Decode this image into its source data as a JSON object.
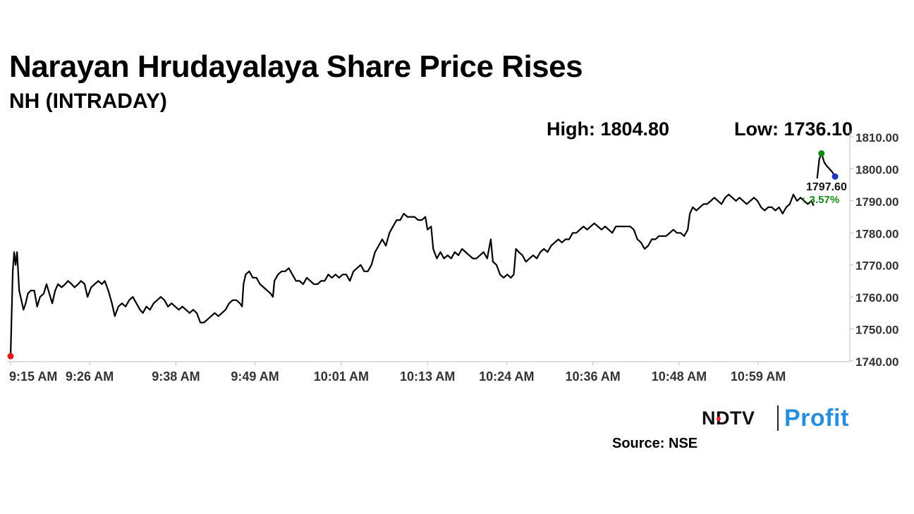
{
  "chart_data": {
    "type": "line",
    "title": "Narayan Hrudayalaya Share Price Rises",
    "subtitle": "NH (INTRADAY)",
    "high_label": "High: 1804.80",
    "low_label": "Low: 1736.10",
    "last_price_label": "1797.60",
    "change_label": "↑ 3.57%",
    "x_tick_labels": [
      "9:15 AM",
      "9:26 AM",
      "9:38 AM",
      "9:49 AM",
      "10:01 AM",
      "10:13 AM",
      "10:24 AM",
      "10:36 AM",
      "10:48 AM",
      "10:59 AM"
    ],
    "x_tick_minutes": [
      0,
      11,
      23,
      34,
      46,
      58,
      69,
      81,
      93,
      104
    ],
    "y_ticks": [
      1740,
      1750,
      1760,
      1770,
      1780,
      1790,
      1800,
      1810
    ],
    "y_tick_labels": [
      "1740.00",
      "1750.00",
      "1760.00",
      "1770.00",
      "1780.00",
      "1790.00",
      "1800.00",
      "1810.00"
    ],
    "ylim": [
      1740,
      1810
    ],
    "xlim_minutes": [
      0,
      114
    ],
    "grid": false,
    "series": [
      {
        "values": [
          [
            0,
            1741.5
          ],
          [
            0.3,
            1768
          ],
          [
            0.5,
            1774
          ],
          [
            0.7,
            1770
          ],
          [
            0.9,
            1774
          ],
          [
            1.2,
            1762
          ],
          [
            1.5,
            1759
          ],
          [
            1.8,
            1756
          ],
          [
            2.1,
            1758
          ],
          [
            2.4,
            1761
          ],
          [
            2.8,
            1762
          ],
          [
            3.3,
            1762
          ],
          [
            3.7,
            1757
          ],
          [
            4.1,
            1760
          ],
          [
            4.6,
            1761
          ],
          [
            5.0,
            1764
          ],
          [
            5.4,
            1761
          ],
          [
            5.8,
            1758
          ],
          [
            6.2,
            1762
          ],
          [
            6.6,
            1764
          ],
          [
            7.1,
            1763
          ],
          [
            7.6,
            1764
          ],
          [
            8.0,
            1765
          ],
          [
            8.5,
            1764
          ],
          [
            8.9,
            1763
          ],
          [
            9.4,
            1764
          ],
          [
            9.8,
            1765
          ],
          [
            10.3,
            1764
          ],
          [
            10.7,
            1760
          ],
          [
            11.2,
            1763
          ],
          [
            11.7,
            1764
          ],
          [
            12.2,
            1765
          ],
          [
            12.7,
            1764
          ],
          [
            13.1,
            1765
          ],
          [
            13.6,
            1762
          ],
          [
            14.1,
            1758
          ],
          [
            14.5,
            1754
          ],
          [
            15.0,
            1757
          ],
          [
            15.5,
            1758
          ],
          [
            16.0,
            1757
          ],
          [
            16.5,
            1759
          ],
          [
            17.0,
            1760
          ],
          [
            17.5,
            1758
          ],
          [
            18.0,
            1756
          ],
          [
            18.4,
            1755
          ],
          [
            18.9,
            1757
          ],
          [
            19.4,
            1756
          ],
          [
            19.9,
            1758
          ],
          [
            20.4,
            1759
          ],
          [
            20.9,
            1760
          ],
          [
            21.4,
            1759
          ],
          [
            21.9,
            1757
          ],
          [
            22.4,
            1758
          ],
          [
            22.9,
            1757
          ],
          [
            23.4,
            1756
          ],
          [
            23.9,
            1757
          ],
          [
            24.4,
            1756
          ],
          [
            24.9,
            1755
          ],
          [
            25.4,
            1756
          ],
          [
            25.9,
            1755
          ],
          [
            26.4,
            1752
          ],
          [
            26.9,
            1752
          ],
          [
            27.4,
            1753
          ],
          [
            27.9,
            1754
          ],
          [
            28.4,
            1755
          ],
          [
            28.9,
            1754
          ],
          [
            29.4,
            1755
          ],
          [
            29.9,
            1756
          ],
          [
            30.4,
            1758
          ],
          [
            30.9,
            1759
          ],
          [
            31.4,
            1759
          ],
          [
            31.9,
            1758
          ],
          [
            32.2,
            1757
          ],
          [
            32.4,
            1764
          ],
          [
            32.7,
            1767
          ],
          [
            33.2,
            1768
          ],
          [
            33.7,
            1766
          ],
          [
            34.2,
            1766
          ],
          [
            34.7,
            1764
          ],
          [
            35.2,
            1763
          ],
          [
            35.7,
            1762
          ],
          [
            36.2,
            1761
          ],
          [
            36.5,
            1760
          ],
          [
            36.7,
            1765
          ],
          [
            37.2,
            1767
          ],
          [
            37.7,
            1768
          ],
          [
            38.2,
            1768
          ],
          [
            38.7,
            1769
          ],
          [
            39.2,
            1767
          ],
          [
            39.7,
            1765
          ],
          [
            40.2,
            1765
          ],
          [
            40.7,
            1764
          ],
          [
            41.2,
            1766
          ],
          [
            41.7,
            1765
          ],
          [
            42.2,
            1764
          ],
          [
            42.7,
            1764
          ],
          [
            43.2,
            1765
          ],
          [
            43.7,
            1765
          ],
          [
            44.2,
            1767
          ],
          [
            44.7,
            1766
          ],
          [
            45.2,
            1767
          ],
          [
            45.7,
            1766
          ],
          [
            46.2,
            1767
          ],
          [
            46.7,
            1767
          ],
          [
            47.2,
            1765
          ],
          [
            47.7,
            1768
          ],
          [
            48.2,
            1769
          ],
          [
            48.7,
            1770
          ],
          [
            49.2,
            1768
          ],
          [
            49.7,
            1768
          ],
          [
            50.2,
            1770
          ],
          [
            50.7,
            1774
          ],
          [
            51.2,
            1776
          ],
          [
            51.7,
            1778
          ],
          [
            52.2,
            1776
          ],
          [
            52.7,
            1780
          ],
          [
            53.2,
            1782
          ],
          [
            53.7,
            1784
          ],
          [
            54.2,
            1784
          ],
          [
            54.7,
            1786
          ],
          [
            55.2,
            1785
          ],
          [
            55.7,
            1785
          ],
          [
            56.2,
            1785
          ],
          [
            56.7,
            1784
          ],
          [
            57.2,
            1784
          ],
          [
            57.7,
            1785
          ],
          [
            58.0,
            1781
          ],
          [
            58.5,
            1782
          ],
          [
            58.8,
            1775
          ],
          [
            59.3,
            1772
          ],
          [
            59.8,
            1774
          ],
          [
            60.3,
            1772
          ],
          [
            60.8,
            1773
          ],
          [
            61.3,
            1772
          ],
          [
            61.8,
            1774
          ],
          [
            62.3,
            1773
          ],
          [
            62.8,
            1775
          ],
          [
            63.3,
            1774
          ],
          [
            63.8,
            1773
          ],
          [
            64.3,
            1772
          ],
          [
            64.8,
            1772
          ],
          [
            65.3,
            1773
          ],
          [
            65.8,
            1774
          ],
          [
            66.3,
            1772
          ],
          [
            66.8,
            1778
          ],
          [
            67.1,
            1771
          ],
          [
            67.6,
            1770
          ],
          [
            68.1,
            1767
          ],
          [
            68.6,
            1766
          ],
          [
            69.1,
            1767
          ],
          [
            69.6,
            1766
          ],
          [
            70.0,
            1767
          ],
          [
            70.3,
            1775
          ],
          [
            70.7,
            1774
          ],
          [
            71.2,
            1773
          ],
          [
            71.7,
            1771
          ],
          [
            72.2,
            1772
          ],
          [
            72.7,
            1773
          ],
          [
            73.2,
            1772
          ],
          [
            73.7,
            1774
          ],
          [
            74.2,
            1775
          ],
          [
            74.7,
            1774
          ],
          [
            75.2,
            1776
          ],
          [
            75.7,
            1777
          ],
          [
            76.2,
            1778
          ],
          [
            76.7,
            1777
          ],
          [
            77.2,
            1778
          ],
          [
            77.7,
            1778
          ],
          [
            78.2,
            1780
          ],
          [
            78.7,
            1780
          ],
          [
            79.2,
            1781
          ],
          [
            79.7,
            1782
          ],
          [
            80.2,
            1781
          ],
          [
            80.7,
            1782
          ],
          [
            81.2,
            1783
          ],
          [
            81.7,
            1782
          ],
          [
            82.2,
            1781
          ],
          [
            82.7,
            1782
          ],
          [
            83.2,
            1781
          ],
          [
            83.7,
            1780
          ],
          [
            84.2,
            1782
          ],
          [
            84.7,
            1782
          ],
          [
            85.2,
            1782
          ],
          [
            85.7,
            1782
          ],
          [
            86.2,
            1782
          ],
          [
            86.7,
            1781
          ],
          [
            87.2,
            1778
          ],
          [
            87.7,
            1777
          ],
          [
            88.2,
            1775
          ],
          [
            88.7,
            1776
          ],
          [
            89.2,
            1778
          ],
          [
            89.7,
            1778
          ],
          [
            90.2,
            1779
          ],
          [
            90.7,
            1779
          ],
          [
            91.2,
            1779
          ],
          [
            91.7,
            1780
          ],
          [
            92.2,
            1781
          ],
          [
            92.7,
            1780
          ],
          [
            93.2,
            1780
          ],
          [
            93.7,
            1779
          ],
          [
            94.2,
            1781
          ],
          [
            94.5,
            1786
          ],
          [
            94.9,
            1788
          ],
          [
            95.4,
            1787
          ],
          [
            95.9,
            1788
          ],
          [
            96.4,
            1789
          ],
          [
            96.9,
            1789
          ],
          [
            97.4,
            1790
          ],
          [
            97.9,
            1791
          ],
          [
            98.4,
            1790
          ],
          [
            98.9,
            1789
          ],
          [
            99.4,
            1791
          ],
          [
            99.9,
            1792
          ],
          [
            100.4,
            1791
          ],
          [
            100.9,
            1790
          ],
          [
            101.4,
            1791
          ],
          [
            101.9,
            1790
          ],
          [
            102.4,
            1789
          ],
          [
            102.9,
            1790
          ],
          [
            103.4,
            1791
          ],
          [
            103.9,
            1790
          ],
          [
            104.4,
            1788
          ],
          [
            104.9,
            1787
          ],
          [
            105.4,
            1788
          ],
          [
            105.9,
            1788
          ],
          [
            106.4,
            1787
          ],
          [
            106.9,
            1788
          ],
          [
            107.4,
            1786
          ],
          [
            107.9,
            1788
          ],
          [
            108.4,
            1789
          ],
          [
            108.9,
            1792
          ],
          [
            109.4,
            1790
          ],
          [
            109.9,
            1791
          ],
          [
            110.4,
            1790
          ],
          [
            110.9,
            1789
          ],
          [
            111.4,
            1790
          ],
          [
            111.7,
            1788.5
          ]
        ]
      },
      {
        "values": [
          [
            112.2,
            1797
          ],
          [
            112.5,
            1803
          ],
          [
            112.8,
            1804.8
          ],
          [
            113.2,
            1802
          ],
          [
            113.5,
            1801
          ],
          [
            113.9,
            1800
          ],
          [
            114.3,
            1799
          ],
          [
            114.7,
            1797.6
          ]
        ]
      }
    ],
    "markers": [
      {
        "role": "low",
        "x": 0,
        "y": 1741.5,
        "color": "#e01a1a"
      },
      {
        "role": "high",
        "x": 112.8,
        "y": 1804.8,
        "color": "#118a11"
      },
      {
        "role": "last",
        "x": 114.7,
        "y": 1797.6,
        "color": "#1e32c8"
      }
    ]
  },
  "colors": {
    "line": "#000000",
    "axis": "#bdbdbd",
    "change_up": "#138a13",
    "brand_profit": "#2a8ee0",
    "brand_dot": "#e8202a"
  },
  "footer": {
    "logo_text_left": "NDTV",
    "logo_text_right": "Profit",
    "source": "Source: NSE"
  }
}
